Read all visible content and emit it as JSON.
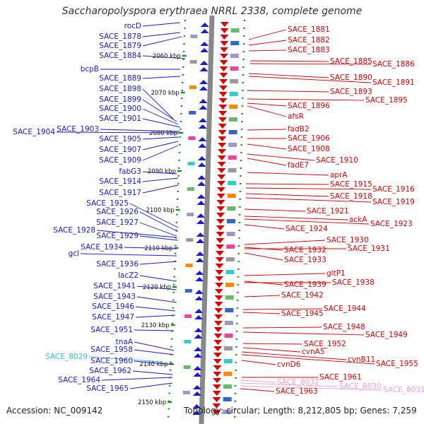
{
  "title": "Saccharopolyspora erythraea NRRL 2338, complete genome",
  "footer": {
    "accession": "Accession: NC_009142",
    "topology": "Topology: circular; Length: 8,212,805 bp; Genes: 7,259"
  },
  "colors": {
    "left_gene": "#1a1ad0",
    "right_gene": "#dd0000",
    "cyan_gene": "#33bbdd",
    "pink_gene": "#f0a0c8",
    "backbone": "#888888",
    "ticks": "#1f8f1f"
  },
  "kbp_marks": [
    "2060 kbp",
    "2070 kbp",
    "2080 kbp",
    "2090 kbp",
    "2100 kbp",
    "2110 kbp",
    "2120 kbp",
    "2130 kbp",
    "2140 kbp",
    "2150 kbp"
  ],
  "left_labels": [
    {
      "text": "rocD",
      "kind": "left"
    },
    {
      "text": "SACE_1878",
      "kind": "left"
    },
    {
      "text": "SACE_1879",
      "kind": "left"
    },
    {
      "text": "SACE_1884",
      "kind": "left"
    },
    {
      "text": "bcpB",
      "kind": "left"
    },
    {
      "text": "SACE_1889",
      "kind": "left"
    },
    {
      "text": "SACE_1898",
      "kind": "left"
    },
    {
      "text": "SACE_1899",
      "kind": "left"
    },
    {
      "text": "SACE_1900",
      "kind": "left"
    },
    {
      "text": "SACE_1901",
      "kind": "left"
    },
    {
      "text": "SACE_1904",
      "kind": "left"
    },
    {
      "text": "SACE_1903",
      "kind": "left"
    },
    {
      "text": "SACE_1905",
      "kind": "left"
    },
    {
      "text": "SACE_1907",
      "kind": "left"
    },
    {
      "text": "SACE_1909",
      "kind": "left"
    },
    {
      "text": "fabG3",
      "kind": "left"
    },
    {
      "text": "SACE_1914",
      "kind": "left"
    },
    {
      "text": "SACE_1917",
      "kind": "left"
    },
    {
      "text": "SACE_1925",
      "kind": "left"
    },
    {
      "text": "SACE_1926",
      "kind": "left"
    },
    {
      "text": "SACE_1927",
      "kind": "left"
    },
    {
      "text": "SACE_1928",
      "kind": "left"
    },
    {
      "text": "SACE_1929",
      "kind": "left"
    },
    {
      "text": "SACE_1934",
      "kind": "left"
    },
    {
      "text": "gcl",
      "kind": "left"
    },
    {
      "text": "SACE_1936",
      "kind": "left"
    },
    {
      "text": "lacZ2",
      "kind": "left"
    },
    {
      "text": "SACE_1941",
      "kind": "left"
    },
    {
      "text": "SACE_1943",
      "kind": "left"
    },
    {
      "text": "SACE_1946",
      "kind": "left"
    },
    {
      "text": "SACE_1947",
      "kind": "left"
    },
    {
      "text": "SACE_1951",
      "kind": "left"
    },
    {
      "text": "tnaA",
      "kind": "left"
    },
    {
      "text": "SACE_1958",
      "kind": "left"
    },
    {
      "text": "SACE_8029",
      "kind": "cyan"
    },
    {
      "text": "SACE_1960",
      "kind": "left"
    },
    {
      "text": "SACE_1962",
      "kind": "left"
    },
    {
      "text": "SACE_1964",
      "kind": "left"
    },
    {
      "text": "SACE_1965",
      "kind": "left"
    }
  ],
  "right_labels": [
    {
      "text": "SACE_1881",
      "kind": "right"
    },
    {
      "text": "SACE_1882",
      "kind": "right"
    },
    {
      "text": "SACE_1883",
      "kind": "right"
    },
    {
      "text": "SACE_1885",
      "kind": "right"
    },
    {
      "text": "SACE_1886",
      "kind": "right"
    },
    {
      "text": "SACE_1890",
      "kind": "right"
    },
    {
      "text": "SACE_1891",
      "kind": "right"
    },
    {
      "text": "SACE_1893",
      "kind": "right"
    },
    {
      "text": "SACE_1895",
      "kind": "right"
    },
    {
      "text": "SACE_1896",
      "kind": "right"
    },
    {
      "text": "afsR",
      "kind": "right"
    },
    {
      "text": "fadB2",
      "kind": "right"
    },
    {
      "text": "SACE_1906",
      "kind": "right"
    },
    {
      "text": "SACE_1908",
      "kind": "right"
    },
    {
      "text": "SACE_1910",
      "kind": "right"
    },
    {
      "text": "fadE7",
      "kind": "right"
    },
    {
      "text": "aprA",
      "kind": "right"
    },
    {
      "text": "SACE_1915",
      "kind": "right"
    },
    {
      "text": "SACE_1916",
      "kind": "right"
    },
    {
      "text": "SACE_1918",
      "kind": "right"
    },
    {
      "text": "SACE_1919",
      "kind": "right"
    },
    {
      "text": "SACE_1921",
      "kind": "right"
    },
    {
      "text": "ackA",
      "kind": "right"
    },
    {
      "text": "SACE_1923",
      "kind": "right"
    },
    {
      "text": "SACE_1924",
      "kind": "right"
    },
    {
      "text": "SACE_1930",
      "kind": "right"
    },
    {
      "text": "SACE_1932",
      "kind": "right"
    },
    {
      "text": "SACE_1931",
      "kind": "right"
    },
    {
      "text": "SACE_1933",
      "kind": "right"
    },
    {
      "text": "gltP1",
      "kind": "right"
    },
    {
      "text": "SACE_1939",
      "kind": "right"
    },
    {
      "text": "SACE_1938",
      "kind": "right"
    },
    {
      "text": "SACE_1942",
      "kind": "right"
    },
    {
      "text": "SACE_1944",
      "kind": "right"
    },
    {
      "text": "SACE_1945",
      "kind": "right"
    },
    {
      "text": "SACE_1948",
      "kind": "right"
    },
    {
      "text": "SACE_1949",
      "kind": "right"
    },
    {
      "text": "SACE_1952",
      "kind": "right"
    },
    {
      "text": "cvnA5",
      "kind": "right"
    },
    {
      "text": "cvnB11",
      "kind": "right"
    },
    {
      "text": "SACE_1955",
      "kind": "right"
    },
    {
      "text": "cvnD6",
      "kind": "right"
    },
    {
      "text": "SACE_1961",
      "kind": "right"
    },
    {
      "text": "SACE_8032",
      "kind": "pink"
    },
    {
      "text": "SACE_8030",
      "kind": "pink"
    },
    {
      "text": "SACE_8031",
      "kind": "pink"
    },
    {
      "text": "SACE_1963",
      "kind": "right"
    }
  ]
}
